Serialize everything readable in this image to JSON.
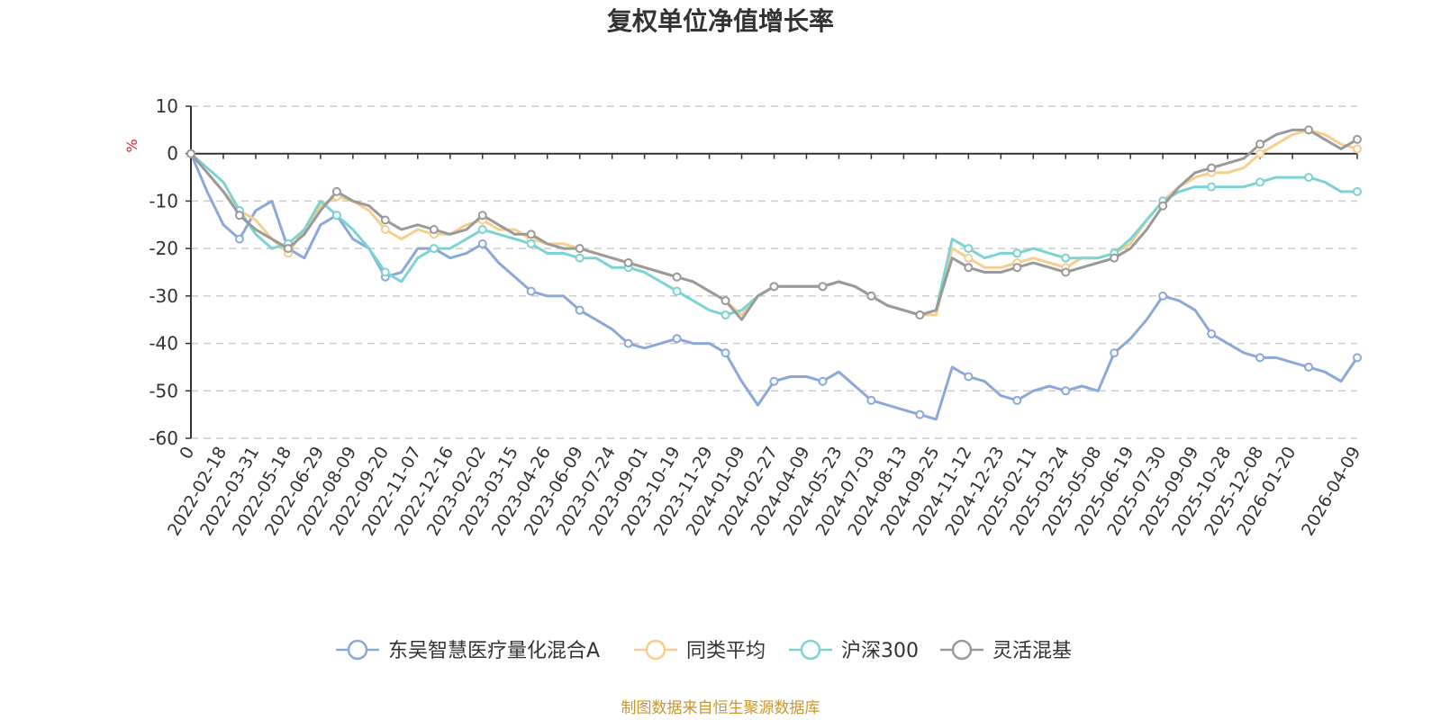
{
  "chart_data": {
    "type": "line",
    "title": "复权单位净值增长率",
    "ylabel": "%",
    "ylim": [
      -60,
      10
    ],
    "yticks": [
      10,
      0,
      -10,
      -20,
      -30,
      -40,
      -50,
      -60
    ],
    "x_tick_labels": [
      "0",
      "2022-02-18",
      "2022-03-31",
      "2022-05-18",
      "2022-06-29",
      "2022-08-09",
      "2022-09-20",
      "2022-11-07",
      "2022-12-16",
      "2023-02-02",
      "2023-03-15",
      "2023-04-26",
      "2023-06-09",
      "2023-07-24",
      "2023-09-01",
      "2023-10-19",
      "2023-11-29",
      "2024-01-09",
      "2024-02-27",
      "2024-04-09",
      "2024-05-23",
      "2024-07-03",
      "2024-08-13",
      "2024-09-25",
      "2024-11-12",
      "2024-12-23",
      "2025-02-11",
      "2025-03-24",
      "2025-05-08",
      "2025-06-19",
      "2025-07-30",
      "2025-09-09",
      "2025-10-28",
      "2025-12-08",
      "2026-01-20",
      "2026-04-09"
    ],
    "x_tick_index": [
      0,
      2,
      4,
      6,
      8,
      10,
      12,
      14,
      16,
      18,
      20,
      22,
      24,
      26,
      28,
      30,
      32,
      34,
      36,
      38,
      40,
      42,
      44,
      46,
      48,
      50,
      52,
      54,
      56,
      58,
      60,
      62,
      64,
      66,
      68,
      72
    ],
    "x_count": 73,
    "gridlines": "dashed-horizontal",
    "legend_position": "bottom-center",
    "series": [
      {
        "name": "东吴智慧医疗量化混合A",
        "color": "#8aa9d9",
        "values": [
          0,
          -8,
          -15,
          -18,
          -12,
          -10,
          -20,
          -22,
          -15,
          -13,
          -18,
          -20,
          -26,
          -25,
          -20,
          -20,
          -22,
          -21,
          -19,
          -23,
          -26,
          -29,
          -30,
          -30,
          -33,
          -35,
          -37,
          -40,
          -41,
          -40,
          -39,
          -40,
          -40,
          -42,
          -48,
          -53,
          -48,
          -47,
          -47,
          -48,
          -46,
          -49,
          -52,
          -53,
          -54,
          -55,
          -56,
          -45,
          -47,
          -48,
          -51,
          -52,
          -50,
          -49,
          -50,
          -49,
          -50,
          -42,
          -39,
          -35,
          -30,
          -31,
          -33,
          -38,
          -40,
          -42,
          -43,
          -43,
          -44,
          -45,
          -46,
          -48,
          -43
        ]
      },
      {
        "name": "同类平均",
        "color": "#f5cf8e",
        "values": [
          0,
          -4,
          -8,
          -12,
          -14,
          -18,
          -21,
          -16,
          -11,
          -9,
          -10,
          -12,
          -16,
          -18,
          -16,
          -17,
          -17,
          -15,
          -14,
          -16,
          -16,
          -18,
          -19,
          -19,
          -20,
          -21,
          -22,
          -23,
          -24,
          -25,
          -26,
          -27,
          -29,
          -31,
          -34,
          -30,
          -28,
          -28,
          -28,
          -28,
          -27,
          -28,
          -30,
          -32,
          -33,
          -34,
          -34,
          -20,
          -22,
          -24,
          -24,
          -23,
          -22,
          -23,
          -24,
          -22,
          -22,
          -21,
          -19,
          -14,
          -10,
          -7,
          -5,
          -4,
          -4,
          -3,
          0,
          2,
          4,
          5,
          4,
          2,
          1
        ]
      },
      {
        "name": "沪深300",
        "color": "#7dd3d3",
        "values": [
          0,
          -3,
          -6,
          -12,
          -17,
          -20,
          -19,
          -16,
          -10,
          -13,
          -16,
          -20,
          -25,
          -27,
          -22,
          -20,
          -20,
          -18,
          -16,
          -17,
          -18,
          -19,
          -21,
          -21,
          -22,
          -22,
          -24,
          -24,
          -25,
          -27,
          -29,
          -31,
          -33,
          -34,
          -33,
          -30,
          -28,
          -28,
          -28,
          -28,
          -27,
          -28,
          -30,
          -32,
          -33,
          -34,
          -33,
          -18,
          -20,
          -22,
          -21,
          -21,
          -20,
          -21,
          -22,
          -22,
          -22,
          -21,
          -18,
          -14,
          -10,
          -8,
          -7,
          -7,
          -7,
          -7,
          -6,
          -5,
          -5,
          -5,
          -6,
          -8,
          -8
        ]
      },
      {
        "name": "灵活混基",
        "color": "#9a9a9a",
        "values": [
          0,
          -4,
          -8,
          -13,
          -16,
          -18,
          -20,
          -17,
          -12,
          -8,
          -10,
          -11,
          -14,
          -16,
          -15,
          -16,
          -17,
          -16,
          -13,
          -15,
          -17,
          -17,
          -19,
          -20,
          -20,
          -21,
          -22,
          -23,
          -24,
          -25,
          -26,
          -27,
          -29,
          -31,
          -35,
          -30,
          -28,
          -28,
          -28,
          -28,
          -27,
          -28,
          -30,
          -32,
          -33,
          -34,
          -33,
          -22,
          -24,
          -25,
          -25,
          -24,
          -23,
          -24,
          -25,
          -24,
          -23,
          -22,
          -20,
          -16,
          -11,
          -7,
          -4,
          -3,
          -2,
          -1,
          2,
          4,
          5,
          5,
          3,
          1,
          3
        ]
      }
    ]
  },
  "footer": {
    "source": "制图数据来自恒生聚源数据库",
    "source_color": "#c8962e"
  },
  "axis": {
    "unit_color": "#e02020"
  }
}
